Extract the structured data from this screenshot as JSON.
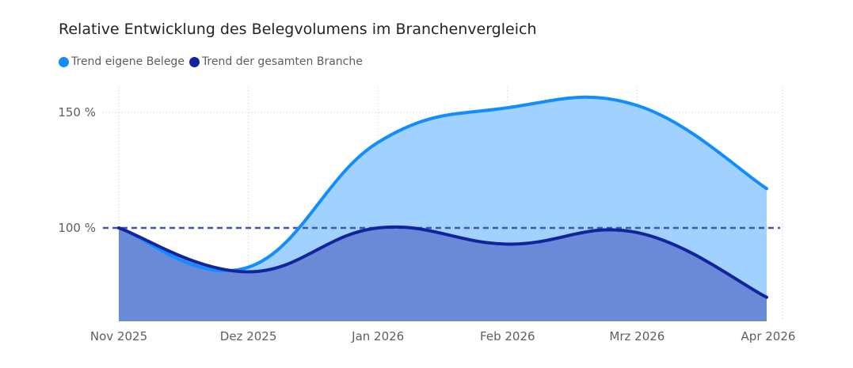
{
  "chart_data": {
    "type": "area",
    "title": "Relative Entwicklung des Belegvolumens im Branchenvergleich",
    "xlabel": "",
    "ylabel": "",
    "categories": [
      "Nov 2025",
      "Dez 2025",
      "Jan 2026",
      "Feb 2026",
      "Mrz 2026",
      "Apr 2026"
    ],
    "series": [
      {
        "name": "Trend eigene Belege",
        "color": "#118dff",
        "fill": "#a0d1ff",
        "values": [
          100,
          83,
          137,
          152,
          153,
          117
        ]
      },
      {
        "name": "Trend der gesamten Branche",
        "color": "#12239e",
        "fill": "#6a8ad8",
        "values": [
          100,
          81,
          100,
          93,
          98,
          70
        ]
      }
    ],
    "yticks": [
      {
        "value": 100,
        "label": "100 %"
      },
      {
        "value": 150,
        "label": "150 %"
      }
    ],
    "reference_line": {
      "value": 100,
      "style": "dashed",
      "color": "#3d55b8"
    },
    "ylim": [
      60,
      155
    ],
    "grid": true,
    "legend_position": "top-left"
  }
}
